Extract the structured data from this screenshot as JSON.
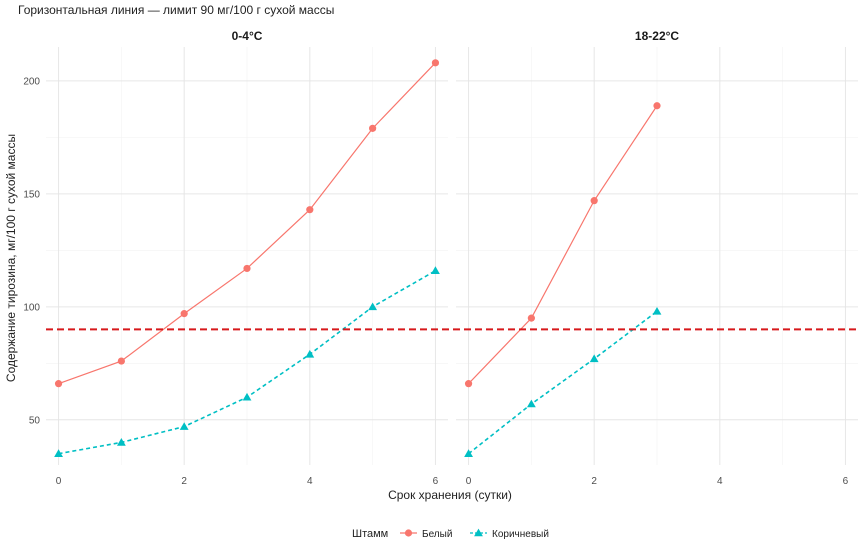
{
  "chart_data": {
    "type": "line",
    "title": "Горизонтальная линия — лимит 90 мг/100 г сухой массы",
    "xlabel": "Срок хранения (сутки)",
    "ylabel": "Содержание тирозина, мг/100 г сухой массы",
    "xlim": [
      -0.2,
      6.2
    ],
    "ylim": [
      30,
      215
    ],
    "x_ticks": [
      "0",
      "2",
      "4",
      "6"
    ],
    "y_ticks": [
      "50",
      "100",
      "150",
      "200"
    ],
    "x_tick_values": [
      0,
      2,
      4,
      6
    ],
    "y_tick_values": [
      50,
      100,
      150,
      200
    ],
    "reference_line": {
      "y": 90,
      "color": "#d7191c",
      "style": "dashed"
    },
    "grid": true,
    "legend": {
      "position": "bottom",
      "title": "Штамм",
      "entries": [
        "Белый",
        "Коричневый"
      ]
    },
    "panels": [
      {
        "label": "0-4°C",
        "series": [
          {
            "name": "Белый",
            "color": "#f8766d",
            "marker": "circle",
            "line": "solid",
            "x": [
              0,
              1,
              2,
              3,
              4,
              5,
              6
            ],
            "y": [
              66,
              76,
              97,
              117,
              143,
              179,
              208
            ]
          },
          {
            "name": "Коричневый",
            "color": "#00bfc4",
            "marker": "triangle",
            "line": "dashed",
            "x": [
              0,
              1,
              2,
              3,
              4,
              5,
              6
            ],
            "y": [
              35,
              40,
              47,
              60,
              79,
              100,
              116
            ]
          }
        ]
      },
      {
        "label": "18-22°C",
        "series": [
          {
            "name": "Белый",
            "color": "#f8766d",
            "marker": "circle",
            "line": "solid",
            "x": [
              0,
              1,
              2,
              3
            ],
            "y": [
              66,
              95,
              147,
              189
            ]
          },
          {
            "name": "Коричневый",
            "color": "#00bfc4",
            "marker": "triangle",
            "line": "dashed",
            "x": [
              0,
              1,
              2,
              3
            ],
            "y": [
              35,
              57,
              77,
              98
            ]
          }
        ]
      }
    ]
  }
}
